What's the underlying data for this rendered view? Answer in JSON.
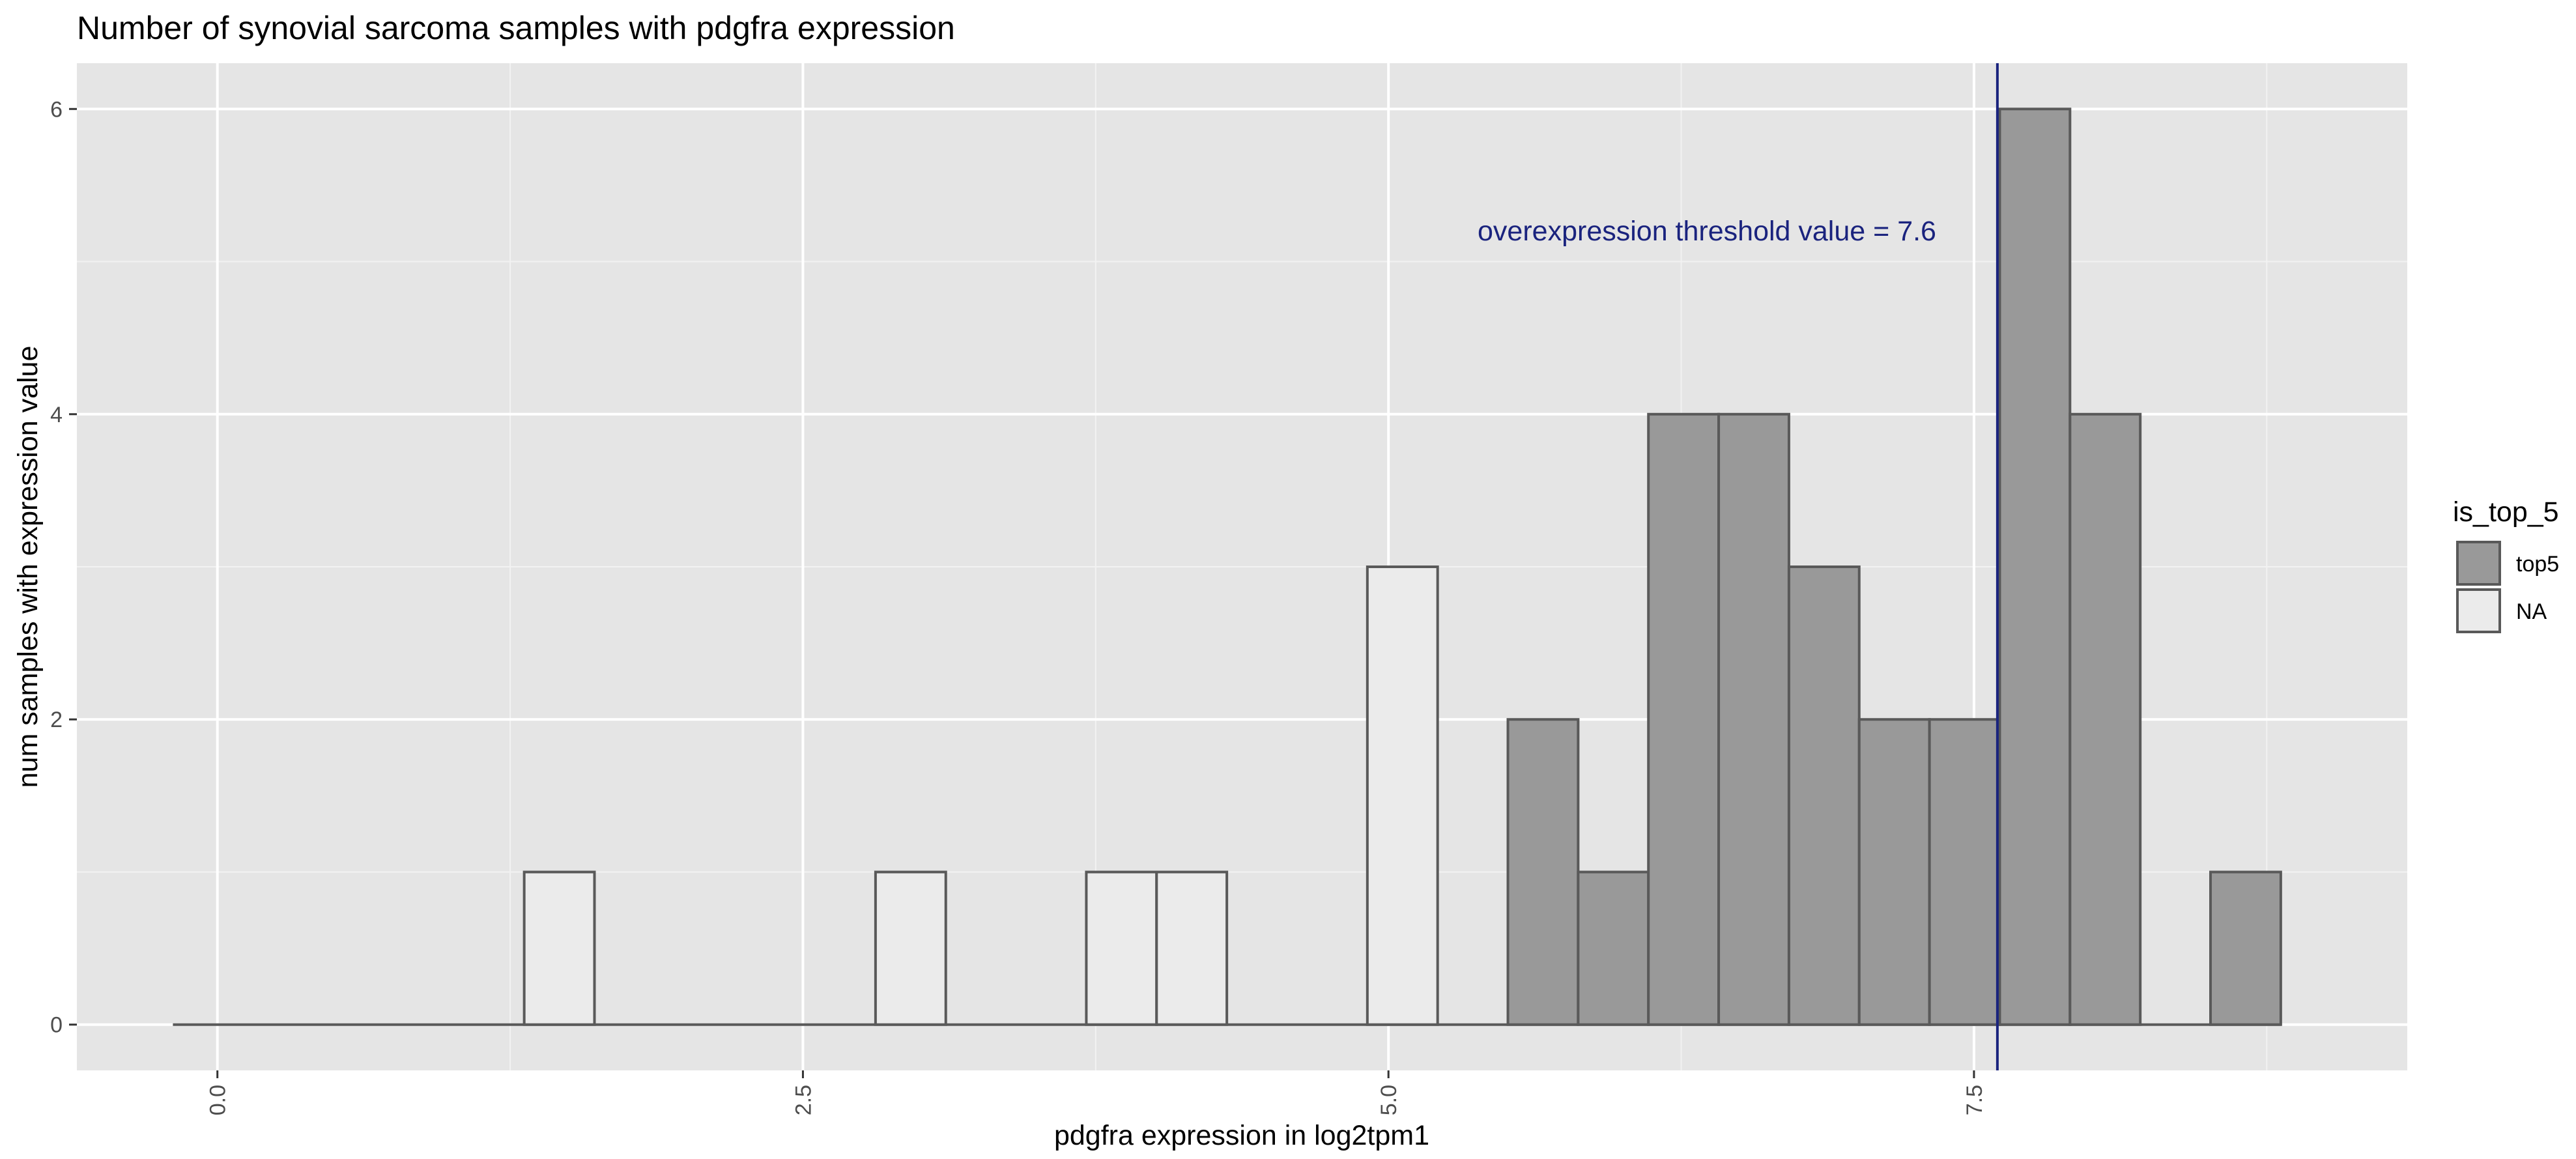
{
  "chart_data": {
    "type": "bar",
    "subtype": "histogram",
    "title": "Number of synovial sarcoma samples with pdgfra expression",
    "xlabel": "pdgfra expression in log2tpm1",
    "ylabel": "num samples with expression value",
    "xlim": [
      -0.6,
      9.35
    ],
    "ylim": [
      -0.3,
      6.3
    ],
    "x_ticks": [
      "0.0",
      "2.5",
      "5.0",
      "7.5"
    ],
    "x_tick_values": [
      0.0,
      2.5,
      5.0,
      7.5
    ],
    "y_ticks": [
      "0",
      "2",
      "4",
      "6"
    ],
    "y_tick_values": [
      0,
      2,
      4,
      6
    ],
    "grid": true,
    "bin_width": 0.3,
    "bin_start": -0.19,
    "series": [
      {
        "name": "top5",
        "color": "#999999",
        "bins": [
          {
            "x0": 5.51,
            "x1": 5.81,
            "count": 2
          },
          {
            "x0": 5.81,
            "x1": 6.11,
            "count": 1
          },
          {
            "x0": 6.11,
            "x1": 6.41,
            "count": 4
          },
          {
            "x0": 6.41,
            "x1": 6.71,
            "count": 4
          },
          {
            "x0": 6.71,
            "x1": 7.01,
            "count": 3
          },
          {
            "x0": 7.01,
            "x1": 7.31,
            "count": 2
          },
          {
            "x0": 7.31,
            "x1": 7.61,
            "count": 2
          },
          {
            "x0": 7.61,
            "x1": 7.91,
            "count": 6
          },
          {
            "x0": 7.91,
            "x1": 8.21,
            "count": 4
          },
          {
            "x0": 8.51,
            "x1": 8.81,
            "count": 1
          }
        ]
      },
      {
        "name": "NA",
        "color": "#ebebeb",
        "bins": [
          {
            "x0": 1.31,
            "x1": 1.61,
            "count": 1
          },
          {
            "x0": 2.81,
            "x1": 3.11,
            "count": 1
          },
          {
            "x0": 3.71,
            "x1": 4.01,
            "count": 1
          },
          {
            "x0": 4.01,
            "x1": 4.31,
            "count": 1
          },
          {
            "x0": 4.91,
            "x1": 5.21,
            "count": 3
          }
        ]
      }
    ],
    "baseline_range": [
      -0.19,
      8.81
    ],
    "threshold": {
      "value": 7.6,
      "label": "overexpression threshold value = 7.6",
      "color": "#1a237e"
    },
    "legend": {
      "title": "is_top_5",
      "position": "right",
      "items": [
        {
          "label": "top5",
          "color": "#999999"
        },
        {
          "label": "NA",
          "color": "#ebebeb"
        }
      ]
    }
  }
}
